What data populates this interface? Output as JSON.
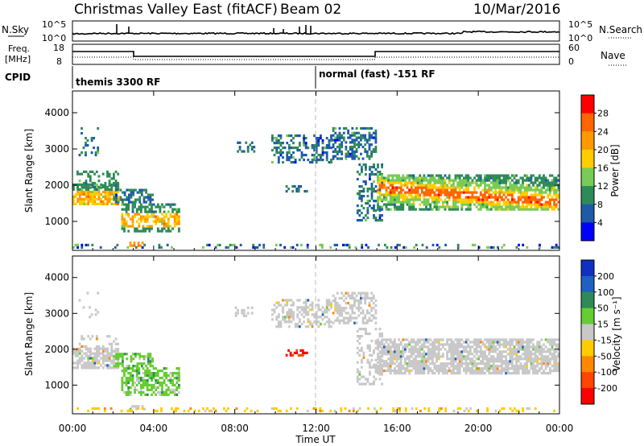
{
  "header": {
    "title": "Christmas Valley East (fitACF)",
    "beam": "Beam 02",
    "date": "10/Mar/2016"
  },
  "strips": {
    "nsky_label": "N.Sky",
    "nsky_ticks": [
      "10^5",
      "10^0"
    ],
    "nsearch_label": "N.Search",
    "nsearch_ticks": [
      "10^5",
      "10^0"
    ],
    "freq_label_1": "Freq.",
    "freq_label_2": "[MHz]",
    "freq_ticks": [
      "18",
      "8"
    ],
    "nave_label": "Nave",
    "nave_ticks": [
      "60",
      "0"
    ],
    "cpid_label": "CPID",
    "cpid_1": "themis 3300 RF",
    "cpid_2": "normal (fast) -151 RF"
  },
  "chart_data": [
    {
      "type": "heatmap",
      "panel": "power",
      "ylabel": "Slant Range [km]",
      "xlabel": "Time UT",
      "xlim_hours": [
        0,
        24
      ],
      "ylim": [
        200,
        4600
      ],
      "y_ticks": [
        "1000",
        "2000",
        "3000",
        "4000"
      ],
      "x_ticks": [
        "00:00",
        "04:00",
        "08:00",
        "12:00",
        "16:00",
        "20:00",
        "00:00"
      ],
      "colorbar_label": "Power [dB]",
      "colorbar_ticks": [
        "28",
        "24",
        "20",
        "16",
        "12",
        "8",
        "4"
      ],
      "colorbar_colors": [
        "#ff0000",
        "#ff6600",
        "#ff9900",
        "#ffcc00",
        "#77cc55",
        "#2e8b57",
        "#1e5aa8",
        "#0000ff"
      ]
    },
    {
      "type": "heatmap",
      "panel": "velocity",
      "ylabel": "Slant Range [km]",
      "xlabel": "Time UT",
      "xlim_hours": [
        0,
        24
      ],
      "ylim": [
        200,
        4600
      ],
      "y_ticks": [
        "1000",
        "2000",
        "3000",
        "4000"
      ],
      "x_ticks": [
        "00:00",
        "04:00",
        "08:00",
        "12:00",
        "16:00",
        "20:00",
        "00:00"
      ],
      "colorbar_label": "Velocity [m s⁻¹]",
      "colorbar_ticks": [
        "200",
        "100",
        "50",
        "15",
        "-15",
        "-50",
        "-100",
        "-200"
      ],
      "colorbar_colors": [
        "#1030c0",
        "#2060c0",
        "#2e8b57",
        "#66cc33",
        "#c8c8c8",
        "#ffcc00",
        "#ff8800",
        "#ff4400",
        "#ff0000"
      ]
    }
  ],
  "x_axis_title": "Time UT"
}
